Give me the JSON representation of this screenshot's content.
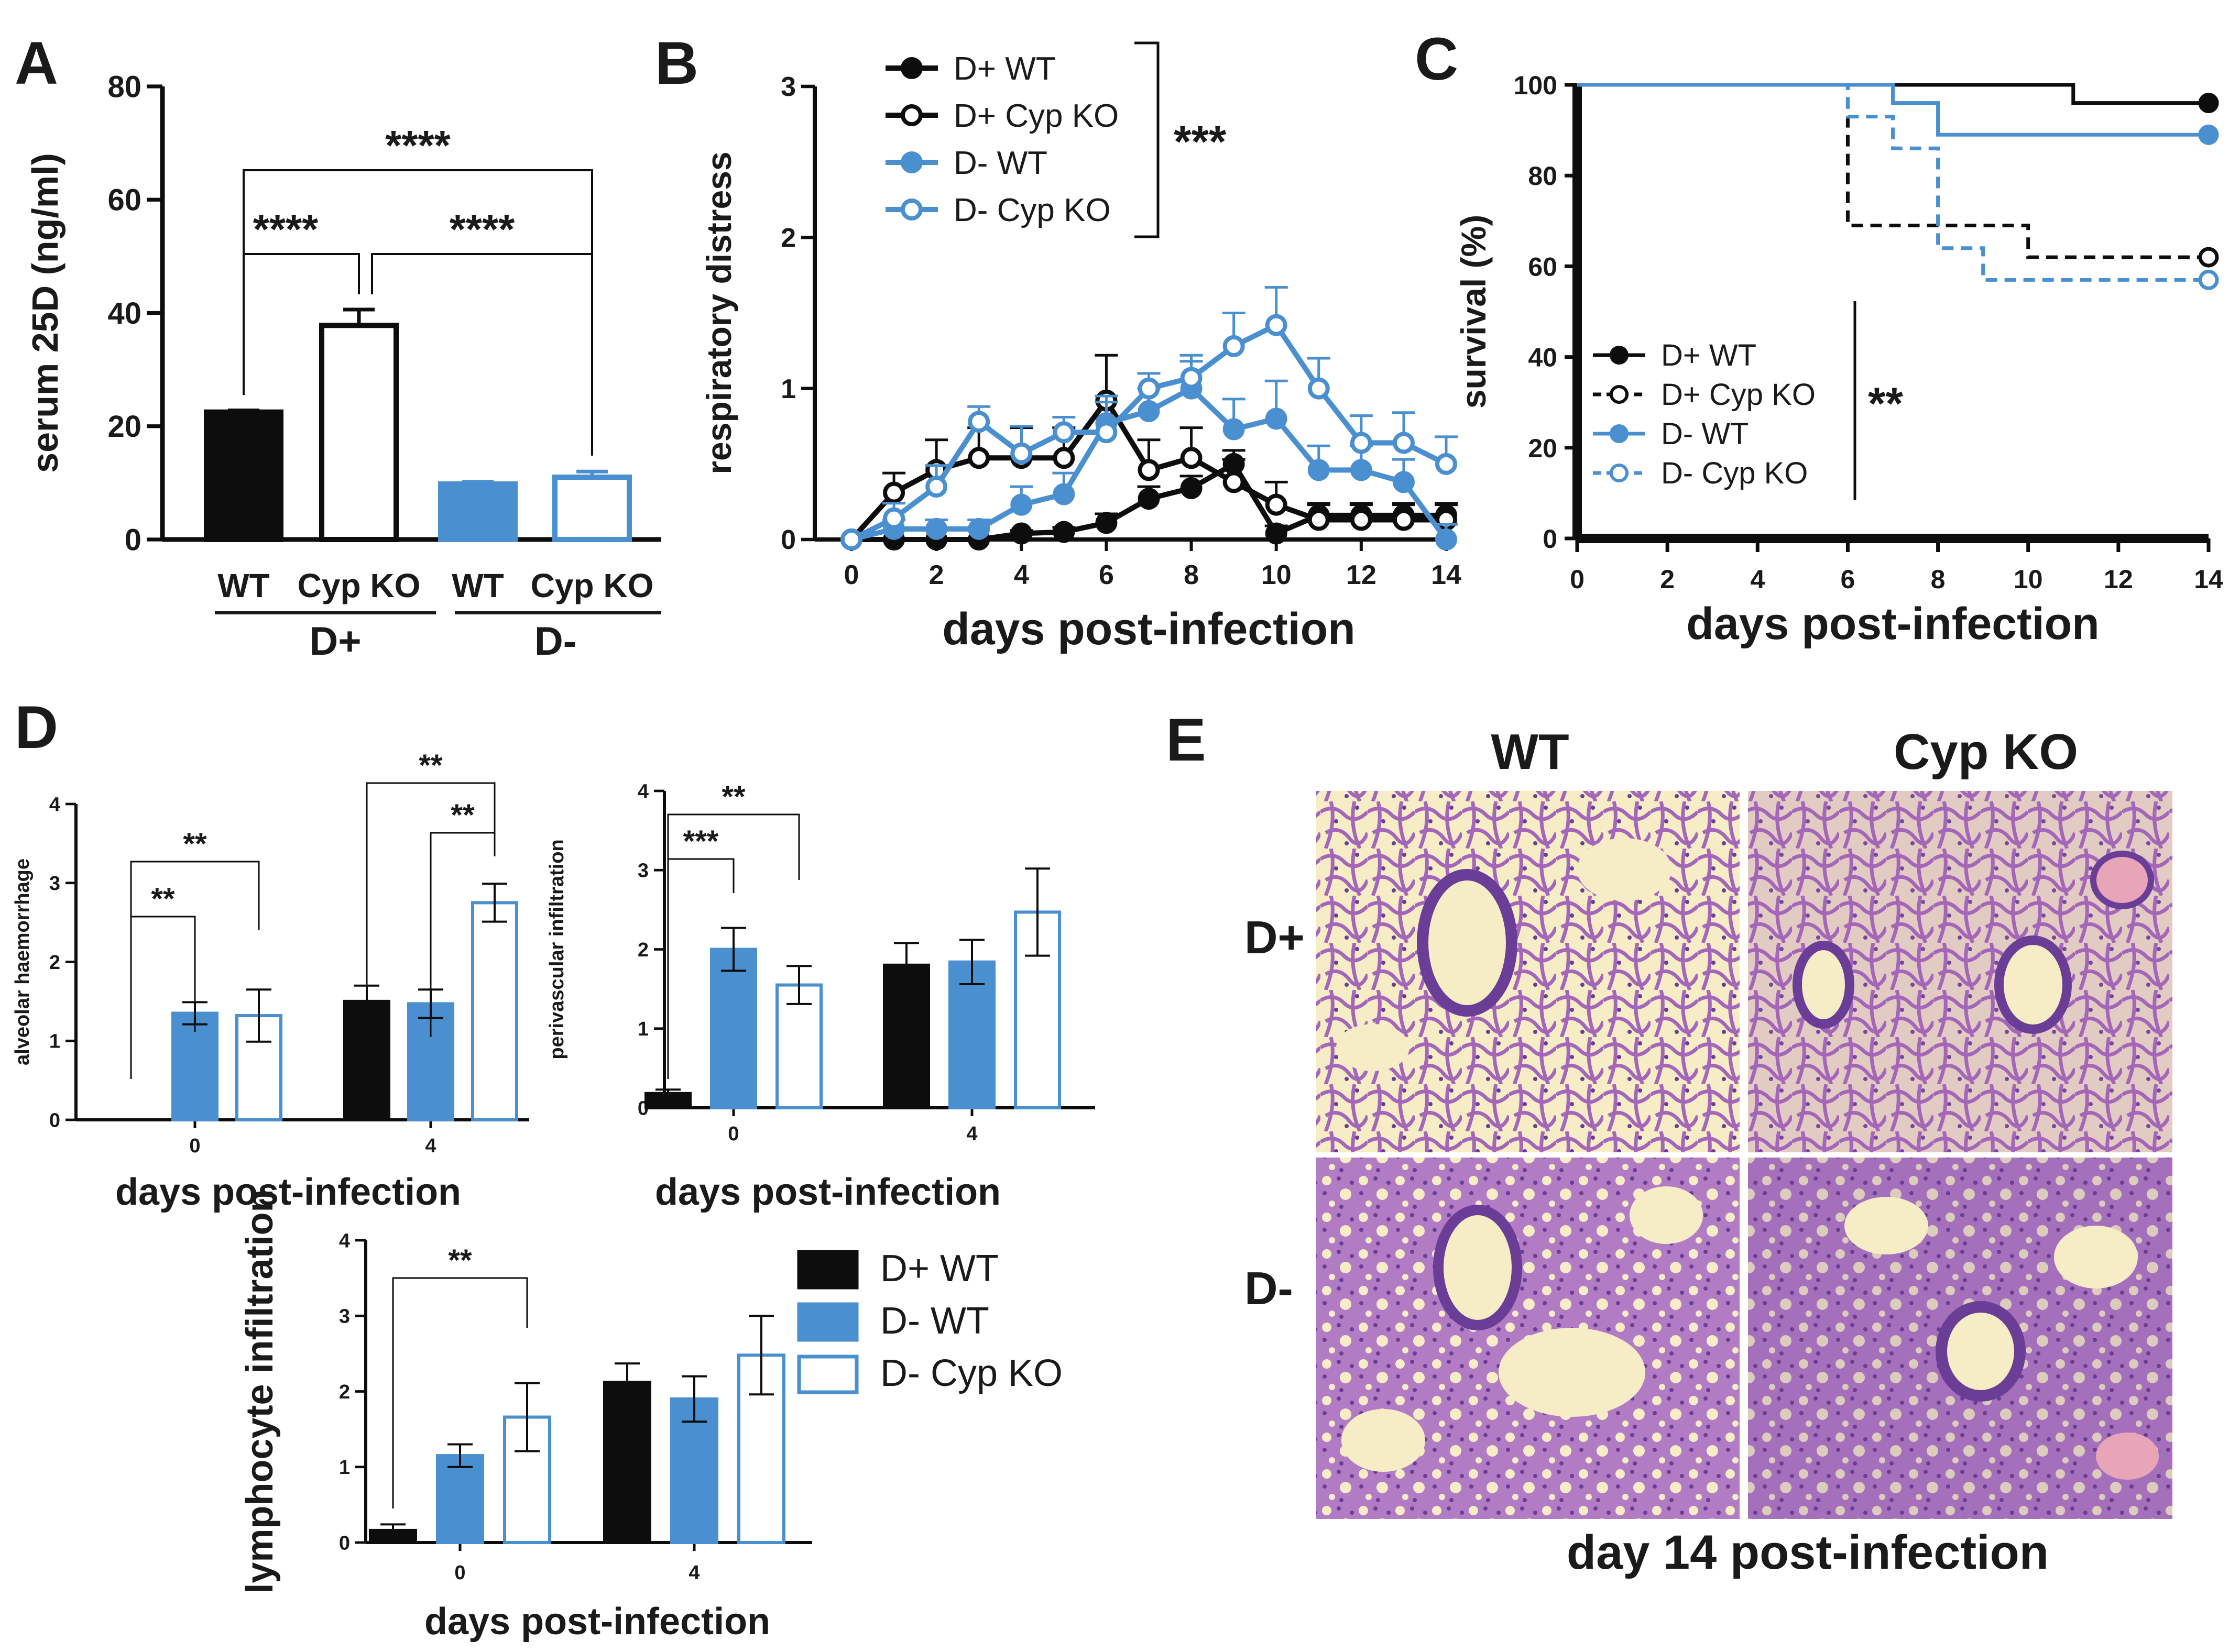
{
  "figure": {
    "caption_e": "day 14 post-infection"
  },
  "colors": {
    "black": "#0d0d0d",
    "blue": "#4a8fd0",
    "white": "#ffffff",
    "histo_bg": "#f6ecc6",
    "histo_tissue": "#a466b8",
    "histo_dark": "#6a3d97"
  },
  "chart_data": [
    {
      "panel": "A",
      "type": "bar",
      "ylabel": "serum 25D (ng/ml)",
      "ylim": [
        0,
        80
      ],
      "yticks": [
        "0",
        "20",
        "40",
        "60",
        "80"
      ],
      "categories": [
        "WT",
        "Cyp KO",
        "WT",
        "Cyp KO"
      ],
      "group_labels": [
        "D+",
        "D-"
      ],
      "values": [
        22.5,
        37.8,
        9.8,
        11.0
      ],
      "errors": [
        0.3,
        2.8,
        0.4,
        1.0
      ],
      "styles": [
        "black-solid",
        "black-open",
        "blue-solid",
        "blue-open"
      ],
      "significance": [
        {
          "pair": [
            0,
            3
          ],
          "label": "****"
        },
        {
          "pair": [
            0,
            1
          ],
          "label": "****"
        },
        {
          "pair": [
            1,
            3
          ],
          "label": "****"
        }
      ]
    },
    {
      "panel": "B",
      "type": "line",
      "ylabel": "respiratory distress",
      "xlabel": "days post-infection",
      "ylim": [
        0,
        3
      ],
      "yticks": [
        "0",
        "1",
        "2",
        "3"
      ],
      "xlim": [
        0,
        14
      ],
      "xticks": [
        "0",
        "2",
        "4",
        "6",
        "8",
        "10",
        "12",
        "14"
      ],
      "x": [
        0,
        1,
        2,
        3,
        4,
        5,
        6,
        7,
        8,
        9,
        10,
        11,
        12,
        13,
        14
      ],
      "significance": "***",
      "series": [
        {
          "name": "D+ WT",
          "values": [
            0,
            0,
            0,
            0,
            0.04,
            0.05,
            0.11,
            0.27,
            0.34,
            0.5,
            0.04,
            0.16,
            0.16,
            0.16,
            0.16
          ],
          "errors": [
            0,
            0,
            0,
            0,
            0.02,
            0.03,
            0.06,
            0.08,
            0.08,
            0.09,
            0.05,
            0.08,
            0.08,
            0.08,
            0.08
          ]
        },
        {
          "name": "D+ Cyp KO",
          "values": [
            0,
            0.31,
            0.46,
            0.54,
            0.54,
            0.54,
            0.92,
            0.46,
            0.54,
            0.38,
            0.23,
            0.13,
            0.13,
            0.13,
            0.13
          ],
          "errors": [
            0,
            0.13,
            0.2,
            0.2,
            0.2,
            0.2,
            0.3,
            0.2,
            0.2,
            0.15,
            0.15,
            0.1,
            0.1,
            0.1,
            0.1
          ]
        },
        {
          "name": "D- WT",
          "values": [
            0,
            0.07,
            0.07,
            0.07,
            0.23,
            0.3,
            0.77,
            0.85,
            1.0,
            0.73,
            0.8,
            0.46,
            0.46,
            0.38,
            0.0
          ],
          "errors": [
            0,
            0.06,
            0.06,
            0.06,
            0.12,
            0.14,
            0.18,
            0.15,
            0.18,
            0.2,
            0.25,
            0.16,
            0.16,
            0.15,
            0.1
          ]
        },
        {
          "name": "D- Cyp KO",
          "values": [
            0,
            0.14,
            0.35,
            0.78,
            0.57,
            0.71,
            0.71,
            1.0,
            1.07,
            1.28,
            1.42,
            1.0,
            0.64,
            0.64,
            0.5
          ],
          "errors": [
            0,
            0.1,
            0.14,
            0.1,
            0.18,
            0.1,
            0.2,
            0.1,
            0.15,
            0.22,
            0.25,
            0.2,
            0.18,
            0.2,
            0.18
          ]
        }
      ]
    },
    {
      "panel": "C",
      "type": "line",
      "ylabel": "survival (%)",
      "xlabel": "days post-infection",
      "ylim": [
        0,
        100
      ],
      "yticks": [
        "0",
        "20",
        "40",
        "60",
        "80",
        "100"
      ],
      "xlim": [
        0,
        14
      ],
      "xticks": [
        "0",
        "2",
        "4",
        "6",
        "8",
        "10",
        "12",
        "14"
      ],
      "significance": "**",
      "series": [
        {
          "name": "D+ WT",
          "steps": [
            [
              0,
              100
            ],
            [
              11,
              96
            ],
            [
              14,
              96
            ]
          ]
        },
        {
          "name": "D+ Cyp KO",
          "steps": [
            [
              0,
              100
            ],
            [
              6,
              69
            ],
            [
              10,
              62
            ],
            [
              14,
              62
            ]
          ]
        },
        {
          "name": "D- WT",
          "steps": [
            [
              0,
              100
            ],
            [
              7,
              96
            ],
            [
              8,
              89
            ],
            [
              14,
              89
            ]
          ]
        },
        {
          "name": "D- Cyp KO",
          "steps": [
            [
              0,
              100
            ],
            [
              6,
              93
            ],
            [
              7,
              86
            ],
            [
              8,
              64
            ],
            [
              9,
              57
            ],
            [
              14,
              57
            ]
          ]
        }
      ]
    },
    {
      "panel": "D1",
      "type": "bar",
      "ylabel": "alveolar haemorrhage",
      "xlabel": "days post-infection",
      "ylim": [
        0,
        4
      ],
      "yticks": [
        "0",
        "1",
        "2",
        "3",
        "4"
      ],
      "categories": [
        "0",
        "4"
      ],
      "series": [
        {
          "name": "D+ WT",
          "values": [
            0,
            1.5
          ],
          "errors": [
            0,
            0.2
          ]
        },
        {
          "name": "D- WT",
          "values": [
            1.35,
            1.47
          ],
          "errors": [
            0.14,
            0.18
          ]
        },
        {
          "name": "D- Cyp KO",
          "values": [
            1.32,
            2.75
          ],
          "errors": [
            0.33,
            0.24
          ]
        }
      ],
      "significance": [
        {
          "from": [
            0,
            0
          ],
          "to": [
            0,
            1
          ],
          "label": "**"
        },
        {
          "from": [
            0,
            0
          ],
          "to": [
            0,
            2
          ],
          "label": "**"
        },
        {
          "from": [
            1,
            0
          ],
          "to": [
            1,
            2
          ],
          "label": "**"
        },
        {
          "from": [
            1,
            1
          ],
          "to": [
            1,
            2
          ],
          "label": "**"
        }
      ]
    },
    {
      "panel": "D2",
      "type": "bar",
      "ylabel": "perivascular infiltration",
      "xlabel": "days post-infection",
      "ylim": [
        0,
        4
      ],
      "yticks": [
        "0",
        "1",
        "2",
        "3",
        "4"
      ],
      "categories": [
        "0",
        "4"
      ],
      "series": [
        {
          "name": "D+ WT",
          "values": [
            0.18,
            1.8
          ],
          "errors": [
            0.05,
            0.28
          ]
        },
        {
          "name": "D- WT",
          "values": [
            2.0,
            1.84
          ],
          "errors": [
            0.27,
            0.28
          ]
        },
        {
          "name": "D- Cyp KO",
          "values": [
            1.55,
            2.47
          ],
          "errors": [
            0.24,
            0.55
          ]
        }
      ],
      "significance": [
        {
          "from": [
            0,
            0
          ],
          "to": [
            0,
            1
          ],
          "label": "***"
        },
        {
          "from": [
            0,
            0
          ],
          "to": [
            0,
            2
          ],
          "label": "**"
        }
      ]
    },
    {
      "panel": "D3",
      "type": "bar",
      "ylabel": "lymphocyte infiltration",
      "xlabel": "days post-infection",
      "ylim": [
        0,
        4
      ],
      "yticks": [
        "0",
        "1",
        "2",
        "3",
        "4"
      ],
      "categories": [
        "0",
        "4"
      ],
      "series": [
        {
          "name": "D+ WT",
          "values": [
            0.16,
            2.12
          ],
          "errors": [
            0.08,
            0.25
          ]
        },
        {
          "name": "D- WT",
          "values": [
            1.15,
            1.9
          ],
          "errors": [
            0.15,
            0.3
          ]
        },
        {
          "name": "D- Cyp KO",
          "values": [
            1.66,
            2.48
          ],
          "errors": [
            0.45,
            0.52
          ]
        }
      ],
      "significance": [
        {
          "from": [
            0,
            0
          ],
          "to": [
            0,
            2
          ],
          "label": "**"
        }
      ],
      "legend": [
        "D+ WT",
        "D- WT",
        "D- Cyp KO"
      ]
    }
  ],
  "panels": {
    "a_label": "A",
    "b_label": "B",
    "c_label": "C",
    "d_label": "D",
    "e_label": "E",
    "a_group_dplus": "D+",
    "a_group_dminus": "D-",
    "e_col_wt": "WT",
    "e_col_cypko": "Cyp KO",
    "e_row_dplus": "D+",
    "e_row_dminus": "D-"
  }
}
